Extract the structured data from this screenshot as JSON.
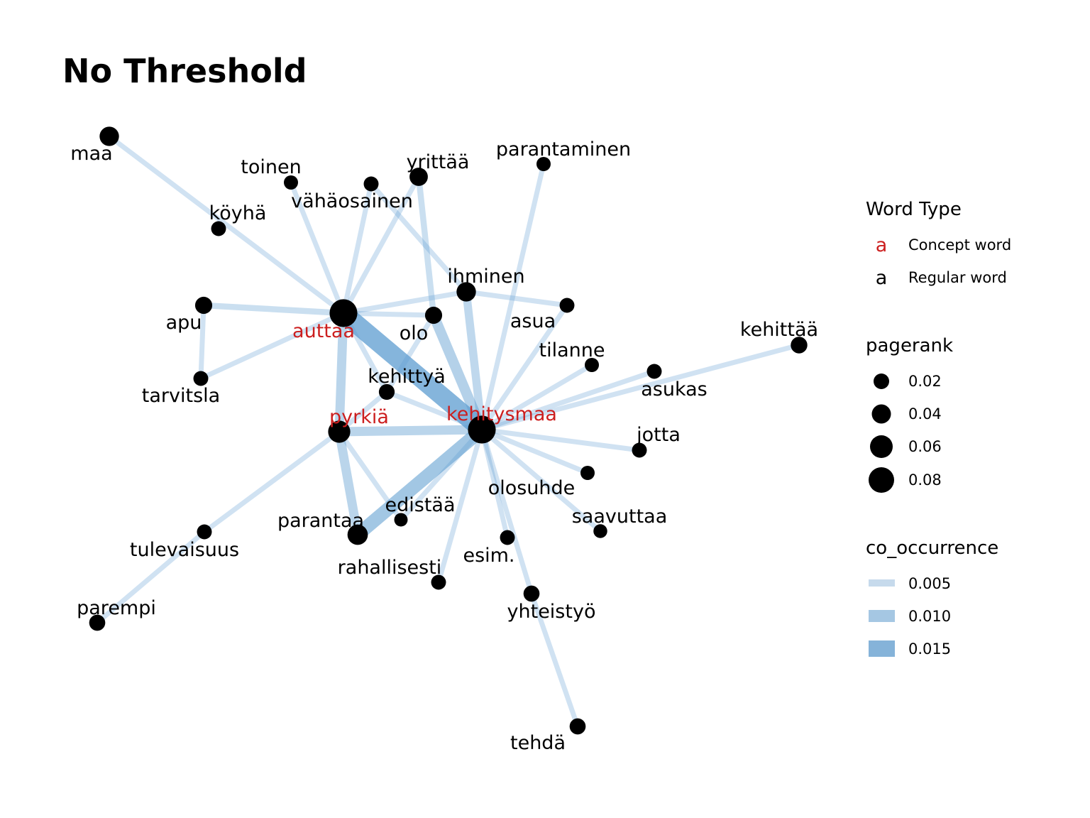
{
  "title": "No Threshold",
  "colors": {
    "concept": "#cc1f1f",
    "regular": "#000000",
    "edge": "#5b9bd0",
    "node": "#000000"
  },
  "legend": {
    "word_type": {
      "title": "Word Type",
      "items": [
        {
          "glyph": "a",
          "label": "Concept word",
          "type": "concept"
        },
        {
          "glyph": "a",
          "label": "Regular word",
          "type": "regular"
        }
      ]
    },
    "pagerank": {
      "title": "pagerank",
      "items": [
        {
          "label": "0.02",
          "value": 0.02
        },
        {
          "label": "0.04",
          "value": 0.04
        },
        {
          "label": "0.06",
          "value": 0.06
        },
        {
          "label": "0.08",
          "value": 0.08
        }
      ]
    },
    "co_occurrence": {
      "title": "co_occurrence",
      "items": [
        {
          "label": "0.005",
          "value": 0.005
        },
        {
          "label": "0.010",
          "value": 0.01
        },
        {
          "label": "0.015",
          "value": 0.015
        }
      ]
    }
  },
  "nodes": [
    {
      "id": "maa",
      "label": "maa",
      "type": "regular",
      "pagerank": 0.03
    },
    {
      "id": "toinen",
      "label": "toinen",
      "type": "regular",
      "pagerank": 0.01
    },
    {
      "id": "vahaosainen",
      "label": "vähäosainen",
      "type": "regular",
      "pagerank": 0.012
    },
    {
      "id": "yrittaa",
      "label": "yrittää",
      "type": "regular",
      "pagerank": 0.025
    },
    {
      "id": "parantaminen",
      "label": "parantaminen",
      "type": "regular",
      "pagerank": 0.01
    },
    {
      "id": "koyha",
      "label": "köyhä",
      "type": "regular",
      "pagerank": 0.012
    },
    {
      "id": "ihminen",
      "label": "ihminen",
      "type": "regular",
      "pagerank": 0.03
    },
    {
      "id": "apu",
      "label": "apu",
      "type": "regular",
      "pagerank": 0.02
    },
    {
      "id": "auttaa",
      "label": "auttaa",
      "type": "concept",
      "pagerank": 0.085
    },
    {
      "id": "olo",
      "label": "olo",
      "type": "regular",
      "pagerank": 0.02
    },
    {
      "id": "asua",
      "label": "asua",
      "type": "regular",
      "pagerank": 0.012
    },
    {
      "id": "kehittaa",
      "label": "kehittää",
      "type": "regular",
      "pagerank": 0.018
    },
    {
      "id": "tilanne",
      "label": "tilanne",
      "type": "regular",
      "pagerank": 0.01
    },
    {
      "id": "tarvitsla",
      "label": "tarvitsla",
      "type": "regular",
      "pagerank": 0.012
    },
    {
      "id": "kehittya",
      "label": "kehittyä",
      "type": "regular",
      "pagerank": 0.015
    },
    {
      "id": "asukas",
      "label": "asukas",
      "type": "regular",
      "pagerank": 0.012
    },
    {
      "id": "pyrkia",
      "label": "pyrkiä",
      "type": "concept",
      "pagerank": 0.045
    },
    {
      "id": "kehitysmaa",
      "label": "kehitysmaa",
      "type": "concept",
      "pagerank": 0.085
    },
    {
      "id": "jotta",
      "label": "jotta",
      "type": "regular",
      "pagerank": 0.012
    },
    {
      "id": "olosuhde",
      "label": "olosuhde",
      "type": "regular",
      "pagerank": 0.01
    },
    {
      "id": "edistaa",
      "label": "edistää",
      "type": "regular",
      "pagerank": 0.008
    },
    {
      "id": "saavuttaa",
      "label": "saavuttaa",
      "type": "regular",
      "pagerank": 0.009
    },
    {
      "id": "parantaa",
      "label": "parantaa",
      "type": "regular",
      "pagerank": 0.035
    },
    {
      "id": "tulevaisuus",
      "label": "tulevaisuus",
      "type": "regular",
      "pagerank": 0.012
    },
    {
      "id": "esim",
      "label": "esim.",
      "type": "regular",
      "pagerank": 0.012
    },
    {
      "id": "rahallisesti",
      "label": "rahallisesti",
      "type": "regular",
      "pagerank": 0.012
    },
    {
      "id": "yhteistyo",
      "label": "yhteistyö",
      "type": "regular",
      "pagerank": 0.016
    },
    {
      "id": "parempi",
      "label": "parempi",
      "type": "regular",
      "pagerank": 0.016
    },
    {
      "id": "tehda",
      "label": "tehdä",
      "type": "regular",
      "pagerank": 0.016
    }
  ],
  "edges": [
    {
      "source": "maa",
      "target": "auttaa",
      "co_occurrence": 0.003
    },
    {
      "source": "toinen",
      "target": "auttaa",
      "co_occurrence": 0.003
    },
    {
      "source": "vahaosainen",
      "target": "auttaa",
      "co_occurrence": 0.003
    },
    {
      "source": "yrittaa",
      "target": "auttaa",
      "co_occurrence": 0.003
    },
    {
      "source": "yrittaa",
      "target": "olo",
      "co_occurrence": 0.004
    },
    {
      "source": "vahaosainen",
      "target": "ihminen",
      "co_occurrence": 0.003
    },
    {
      "source": "parantaminen",
      "target": "kehitysmaa",
      "co_occurrence": 0.003
    },
    {
      "source": "apu",
      "target": "auttaa",
      "co_occurrence": 0.004
    },
    {
      "source": "apu",
      "target": "tarvitsla",
      "co_occurrence": 0.003
    },
    {
      "source": "tarvitsla",
      "target": "auttaa",
      "co_occurrence": 0.003
    },
    {
      "source": "auttaa",
      "target": "ihminen",
      "co_occurrence": 0.003
    },
    {
      "source": "auttaa",
      "target": "olo",
      "co_occurrence": 0.003
    },
    {
      "source": "ihminen",
      "target": "asua",
      "co_occurrence": 0.003
    },
    {
      "source": "auttaa",
      "target": "kehitysmaa",
      "co_occurrence": 0.016
    },
    {
      "source": "auttaa",
      "target": "pyrkia",
      "co_occurrence": 0.007
    },
    {
      "source": "auttaa",
      "target": "kehittya",
      "co_occurrence": 0.003
    },
    {
      "source": "olo",
      "target": "kehitysmaa",
      "co_occurrence": 0.008
    },
    {
      "source": "olo",
      "target": "kehittya",
      "co_occurrence": 0.003
    },
    {
      "source": "ihminen",
      "target": "kehitysmaa",
      "co_occurrence": 0.006
    },
    {
      "source": "asua",
      "target": "kehitysmaa",
      "co_occurrence": 0.003
    },
    {
      "source": "kehittaa",
      "target": "kehitysmaa",
      "co_occurrence": 0.003
    },
    {
      "source": "tilanne",
      "target": "kehitysmaa",
      "co_occurrence": 0.003
    },
    {
      "source": "asukas",
      "target": "kehitysmaa",
      "co_occurrence": 0.003
    },
    {
      "source": "kehittya",
      "target": "pyrkia",
      "co_occurrence": 0.003
    },
    {
      "source": "kehittya",
      "target": "kehitysmaa",
      "co_occurrence": 0.003
    },
    {
      "source": "pyrkia",
      "target": "kehitysmaa",
      "co_occurrence": 0.007
    },
    {
      "source": "pyrkia",
      "target": "parantaa",
      "co_occurrence": 0.007
    },
    {
      "source": "pyrkia",
      "target": "tulevaisuus",
      "co_occurrence": 0.003
    },
    {
      "source": "pyrkia",
      "target": "edistaa",
      "co_occurrence": 0.003
    },
    {
      "source": "tulevaisuus",
      "target": "parempi",
      "co_occurrence": 0.003
    },
    {
      "source": "kehitysmaa",
      "target": "parantaa",
      "co_occurrence": 0.011
    },
    {
      "source": "kehitysmaa",
      "target": "jotta",
      "co_occurrence": 0.003
    },
    {
      "source": "kehitysmaa",
      "target": "olosuhde",
      "co_occurrence": 0.003
    },
    {
      "source": "kehitysmaa",
      "target": "edistaa",
      "co_occurrence": 0.003
    },
    {
      "source": "kehitysmaa",
      "target": "saavuttaa",
      "co_occurrence": 0.003
    },
    {
      "source": "kehitysmaa",
      "target": "esim",
      "co_occurrence": 0.003
    },
    {
      "source": "kehitysmaa",
      "target": "rahallisesti",
      "co_occurrence": 0.003
    },
    {
      "source": "kehitysmaa",
      "target": "yhteistyo",
      "co_occurrence": 0.003
    },
    {
      "source": "yhteistyo",
      "target": "tehda",
      "co_occurrence": 0.003
    }
  ]
}
